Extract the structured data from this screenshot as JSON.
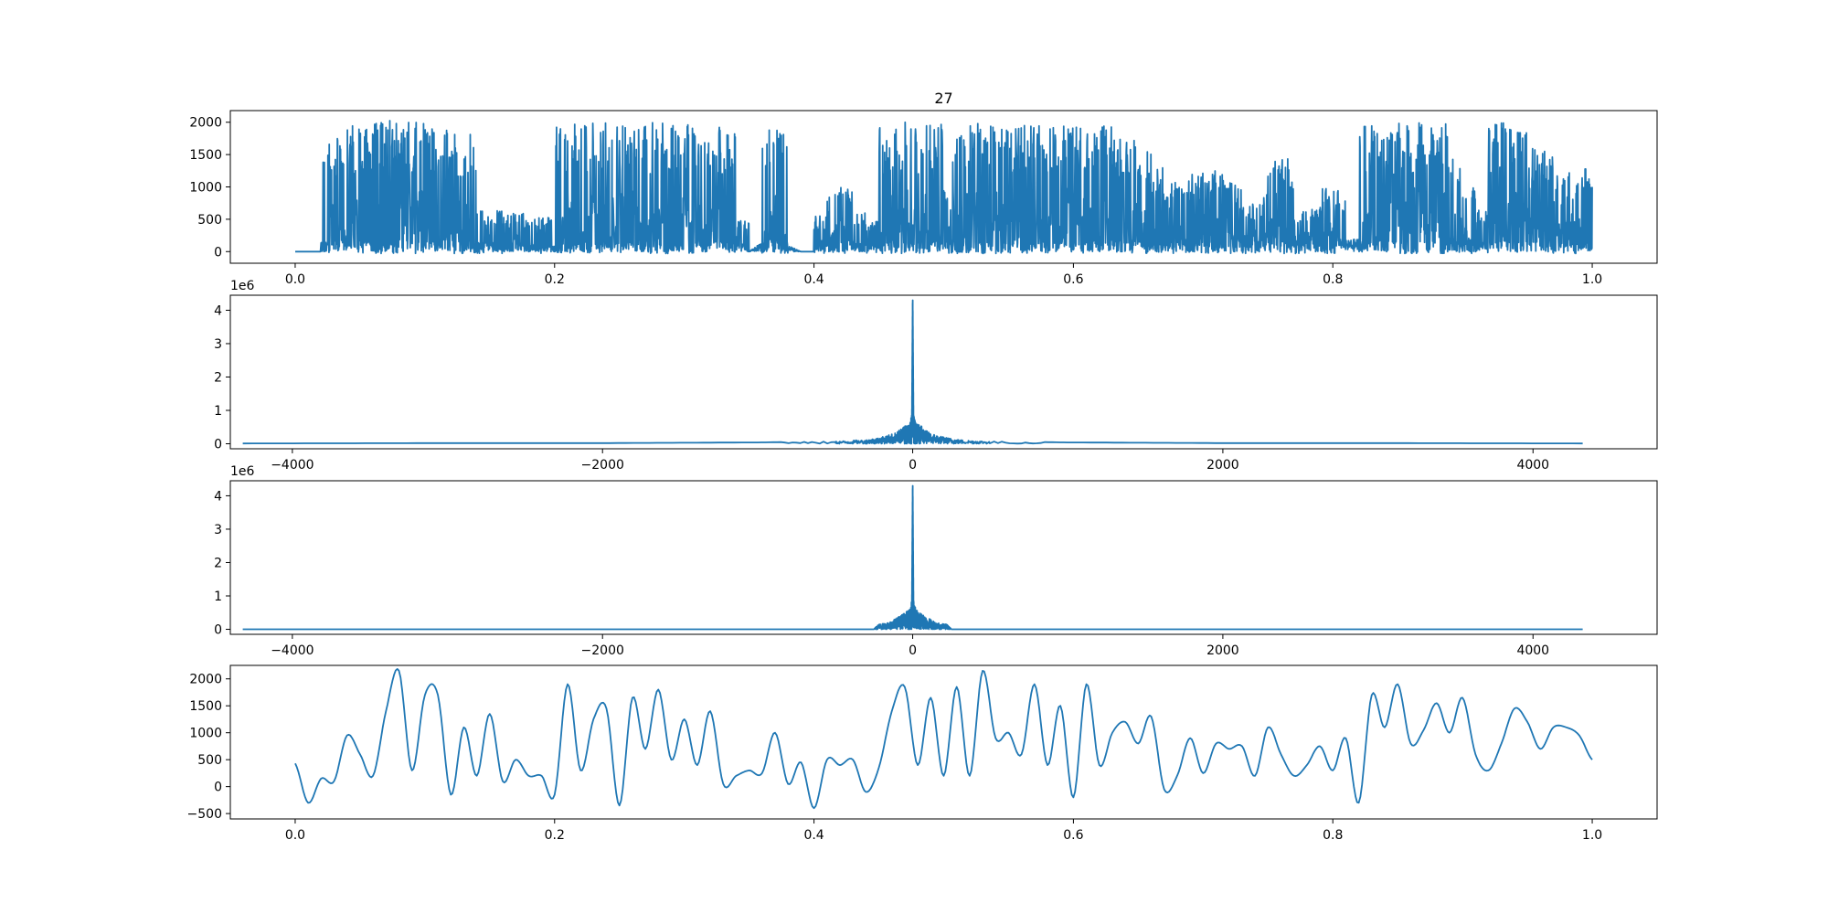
{
  "figure": {
    "title": "27",
    "line_color": "#1f77b4"
  },
  "chart_data": [
    {
      "type": "line",
      "title": "27",
      "xlim": [
        -0.05,
        1.05
      ],
      "ylim": [
        -180,
        2180
      ],
      "xticks": [
        0.0,
        0.2,
        0.4,
        0.6,
        0.8,
        1.0
      ],
      "xtick_labels": [
        "0.0",
        "0.2",
        "0.4",
        "0.6",
        "0.8",
        "1.0"
      ],
      "yticks": [
        0,
        500,
        1000,
        1500,
        2000
      ],
      "ytick_labels": [
        "0",
        "500",
        "1000",
        "1500",
        "2000"
      ],
      "offset_label": "",
      "grid": false,
      "series": [
        {
          "x": [
            0.0,
            0.02,
            0.03,
            0.04,
            0.05,
            0.06,
            0.065,
            0.07,
            0.08,
            0.09,
            0.1,
            0.11,
            0.12,
            0.13,
            0.14,
            0.15,
            0.16,
            0.17,
            0.18,
            0.19,
            0.2,
            0.21,
            0.22,
            0.23,
            0.24,
            0.25,
            0.26,
            0.27,
            0.28,
            0.29,
            0.3,
            0.31,
            0.32,
            0.33,
            0.34,
            0.35,
            0.36,
            0.37,
            0.38,
            0.39,
            0.4,
            0.41,
            0.42,
            0.43,
            0.44,
            0.45,
            0.46,
            0.47,
            0.48,
            0.49,
            0.5,
            0.51,
            0.52,
            0.53,
            0.54,
            0.55,
            0.56,
            0.57,
            0.58,
            0.59,
            0.6,
            0.61,
            0.62,
            0.63,
            0.64,
            0.65,
            0.66,
            0.67,
            0.68,
            0.69,
            0.7,
            0.71,
            0.72,
            0.73,
            0.74,
            0.75,
            0.76,
            0.77,
            0.78,
            0.79,
            0.8,
            0.81,
            0.82,
            0.83,
            0.84,
            0.85,
            0.86,
            0.87,
            0.88,
            0.89,
            0.9,
            0.91,
            0.92,
            0.93,
            0.94,
            0.95,
            0.96,
            0.97,
            0.98,
            0.99,
            1.0
          ],
          "y": [
            0,
            0,
            1800,
            600,
            1950,
            0,
            2000,
            0,
            2050,
            2000,
            1950,
            300,
            1900,
            1850,
            0,
            650,
            0,
            600,
            0,
            550,
            0,
            2000,
            500,
            2000,
            1900,
            2000,
            1950,
            600,
            2000,
            0,
            1950,
            2000,
            1600,
            2000,
            500,
            0,
            300,
            1950,
            200,
            0,
            0,
            550,
            1000,
            600,
            0,
            500,
            1950,
            2000,
            1900,
            2000,
            1950,
            1950,
            2000,
            2000,
            1900,
            1500,
            1950,
            1950,
            1500,
            1950,
            2000,
            1600,
            1950,
            1250,
            1750,
            1600,
            1300,
            300,
            1100,
            0,
            1300,
            1200,
            1100,
            500,
            750,
            900,
            1450,
            600,
            650,
            500,
            1000,
            350,
            400,
            1950,
            1950,
            1950,
            2000,
            1950,
            2000,
            1750,
            1000,
            0,
            650,
            2000,
            1900,
            1600,
            1550,
            1000,
            1200,
            1300,
            1000
          ]
        }
      ]
    },
    {
      "type": "line",
      "title": "",
      "xlim": [
        -4400,
        4800
      ],
      "ylim": [
        -0.15,
        4.45
      ],
      "xticks": [
        -4000,
        -2000,
        0,
        2000,
        4000
      ],
      "xtick_labels": [
        "−4000",
        "−2000",
        "0",
        "2000",
        "4000"
      ],
      "yticks": [
        0,
        1,
        2,
        3,
        4
      ],
      "ytick_labels": [
        "0",
        "1",
        "2",
        "3",
        "4"
      ],
      "offset_label": "1e6",
      "grid": false,
      "series": [
        {
          "x": [
            -4320,
            -3000,
            -2000,
            -1000,
            -500,
            -300,
            -200,
            -100,
            -50,
            -20,
            -5,
            0,
            5,
            20,
            50,
            100,
            200,
            300,
            500,
            1000,
            2000,
            3000,
            4320
          ],
          "y": [
            0.01,
            0.02,
            0.02,
            0.04,
            0.07,
            0.12,
            0.2,
            0.35,
            0.55,
            0.6,
            0.9,
            4.3,
            0.9,
            0.6,
            0.55,
            0.35,
            0.2,
            0.12,
            0.07,
            0.04,
            0.02,
            0.02,
            0.01
          ]
        }
      ]
    },
    {
      "type": "line",
      "title": "",
      "xlim": [
        -4400,
        4800
      ],
      "ylim": [
        -0.15,
        4.45
      ],
      "xticks": [
        -4000,
        -2000,
        0,
        2000,
        4000
      ],
      "xtick_labels": [
        "−4000",
        "−2000",
        "0",
        "2000",
        "4000"
      ],
      "yticks": [
        0,
        1,
        2,
        3,
        4
      ],
      "ytick_labels": [
        "0",
        "1",
        "2",
        "3",
        "4"
      ],
      "offset_label": "1e6",
      "grid": false,
      "series": [
        {
          "x": [
            -4320,
            -250,
            -220,
            -150,
            -100,
            -50,
            -20,
            -5,
            0,
            5,
            20,
            50,
            100,
            150,
            220,
            250,
            4320
          ],
          "y": [
            0.0,
            0.0,
            0.15,
            0.2,
            0.35,
            0.5,
            0.6,
            0.9,
            4.3,
            0.9,
            0.6,
            0.5,
            0.35,
            0.2,
            0.15,
            0.0,
            0.0
          ]
        }
      ]
    },
    {
      "type": "line",
      "title": "",
      "xlim": [
        -0.05,
        1.05
      ],
      "ylim": [
        -600,
        2250
      ],
      "xticks": [
        0.0,
        0.2,
        0.4,
        0.6,
        0.8,
        1.0
      ],
      "xtick_labels": [
        "0.0",
        "0.2",
        "0.4",
        "0.6",
        "0.8",
        "1.0"
      ],
      "yticks": [
        -500,
        0,
        500,
        1000,
        1500,
        2000
      ],
      "ytick_labels": [
        "−500",
        "0",
        "500",
        "1000",
        "1500",
        "2000"
      ],
      "offset_label": "",
      "grid": false,
      "series": [
        {
          "x": [
            0.0,
            0.01,
            0.02,
            0.03,
            0.04,
            0.05,
            0.06,
            0.07,
            0.08,
            0.09,
            0.1,
            0.11,
            0.12,
            0.13,
            0.14,
            0.15,
            0.16,
            0.17,
            0.18,
            0.19,
            0.2,
            0.21,
            0.22,
            0.23,
            0.24,
            0.25,
            0.26,
            0.27,
            0.28,
            0.29,
            0.3,
            0.31,
            0.32,
            0.33,
            0.34,
            0.35,
            0.36,
            0.37,
            0.38,
            0.39,
            0.4,
            0.41,
            0.42,
            0.43,
            0.44,
            0.45,
            0.46,
            0.47,
            0.48,
            0.49,
            0.5,
            0.51,
            0.52,
            0.53,
            0.54,
            0.55,
            0.56,
            0.57,
            0.58,
            0.59,
            0.6,
            0.61,
            0.62,
            0.63,
            0.64,
            0.65,
            0.66,
            0.67,
            0.68,
            0.69,
            0.7,
            0.71,
            0.72,
            0.73,
            0.74,
            0.75,
            0.76,
            0.77,
            0.78,
            0.79,
            0.8,
            0.81,
            0.82,
            0.83,
            0.84,
            0.85,
            0.86,
            0.87,
            0.88,
            0.89,
            0.9,
            0.91,
            0.92,
            0.93,
            0.94,
            0.95,
            0.96,
            0.97,
            0.98,
            0.99,
            1.0
          ],
          "y": [
            430,
            -300,
            150,
            100,
            950,
            600,
            200,
            1400,
            2150,
            300,
            1700,
            1700,
            -150,
            1100,
            200,
            1350,
            100,
            500,
            200,
            200,
            -150,
            1900,
            300,
            1250,
            1450,
            -350,
            1650,
            700,
            1800,
            500,
            1250,
            400,
            1400,
            50,
            200,
            300,
            250,
            1000,
            50,
            450,
            -400,
            500,
            400,
            500,
            -100,
            350,
            1400,
            1850,
            400,
            1650,
            200,
            1850,
            200,
            2150,
            900,
            1000,
            600,
            1900,
            400,
            1500,
            -200,
            1900,
            400,
            1000,
            1200,
            800,
            1300,
            -50,
            200,
            900,
            250,
            800,
            700,
            750,
            200,
            1100,
            600,
            200,
            400,
            750,
            300,
            900,
            -300,
            1700,
            1100,
            1900,
            800,
            1050,
            1550,
            1000,
            1650,
            600,
            300,
            800,
            1450,
            1200,
            700,
            1100,
            1100,
            950,
            500
          ]
        }
      ]
    }
  ]
}
